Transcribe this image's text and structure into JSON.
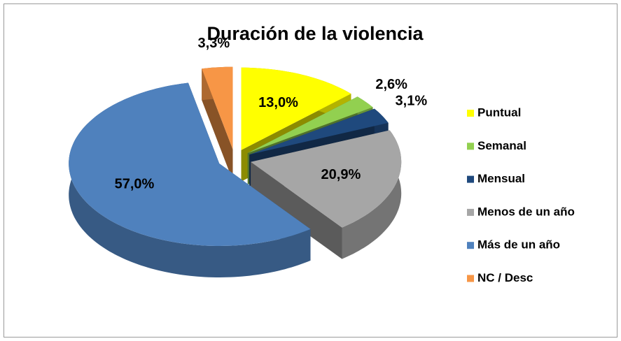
{
  "chart_data": {
    "type": "pie3d",
    "title": "Duración de la violencia",
    "categories": [
      "Puntual",
      "Semanal",
      "Mensual",
      "Menos de un año",
      "Más de un año",
      "NC / Desc"
    ],
    "values": [
      13.0,
      2.6,
      3.1,
      20.9,
      57.0,
      3.3
    ],
    "value_labels": [
      "13,0%",
      "2,6%",
      "3,1%",
      "20,9%",
      "57,0%",
      "3,3%"
    ],
    "colors": [
      "#ffff00",
      "#92d050",
      "#1f497d",
      "#a6a6a6",
      "#4f81bd",
      "#f79646"
    ],
    "legend": "right"
  }
}
